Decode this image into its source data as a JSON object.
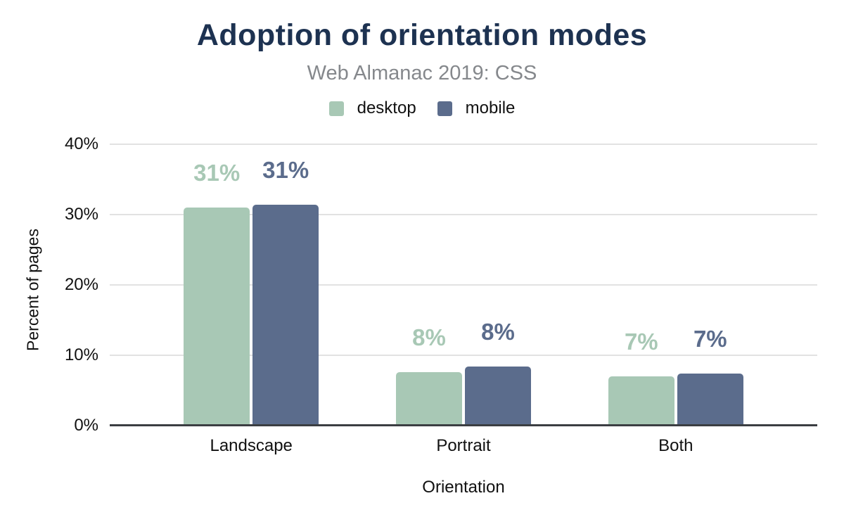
{
  "chart_data": {
    "type": "bar",
    "title": "Adoption of orientation modes",
    "subtitle": "Web Almanac 2019: CSS",
    "categories": [
      "Landscape",
      "Portrait",
      "Both"
    ],
    "series": [
      {
        "name": "desktop",
        "color": "#a8c8b5",
        "values": [
          31.0,
          7.6,
          7.0
        ],
        "labels": [
          "31%",
          "8%",
          "7%"
        ]
      },
      {
        "name": "mobile",
        "color": "#5b6c8c",
        "values": [
          31.4,
          8.4,
          7.4
        ],
        "labels": [
          "31%",
          "8%",
          "7%"
        ]
      }
    ],
    "xlabel": "Orientation",
    "ylabel": "Percent of pages",
    "ylim": [
      0,
      40
    ],
    "yticks": [
      "0%",
      "10%",
      "20%",
      "30%",
      "40%"
    ],
    "grid": true,
    "legend_position": "top"
  },
  "colors": {
    "title": "#1d3251",
    "subtitle": "#85888c",
    "axis_text": "#111111",
    "gridline": "#e2e2e2",
    "baseline": "#3b3e42",
    "background": "#ffffff"
  }
}
